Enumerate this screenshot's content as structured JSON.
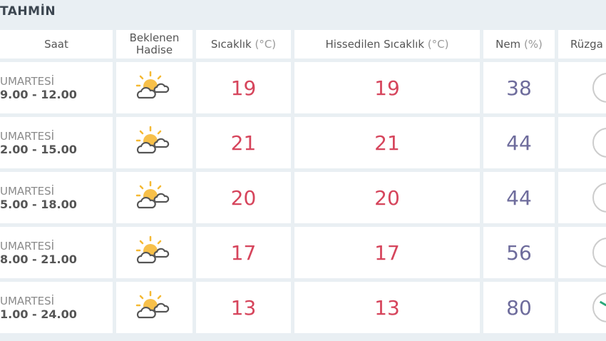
{
  "title": "TAHMİN",
  "headers": {
    "saat": "Saat",
    "hadise": "Beklenen Hadise",
    "sicaklik": "Sıcaklık",
    "sicaklik_unit": "(°C)",
    "hissedilen": "Hissedilen Sıcaklık",
    "hissedilen_unit": "(°C)",
    "nem": "Nem",
    "nem_unit": "(%)",
    "ruzgar": "Rüzga"
  },
  "colors": {
    "temperature": "#d6455c",
    "humidity": "#6e6c9c",
    "wind_arrow": "#2aa87a"
  },
  "rows": [
    {
      "day": "UMARTESİ",
      "time": "9.00 - 12.00",
      "icon": "partly-cloudy-icon",
      "temp": "19",
      "feels": "19",
      "humidity": "38"
    },
    {
      "day": "UMARTESİ",
      "time": "2.00 - 15.00",
      "icon": "partly-cloudy-icon",
      "temp": "21",
      "feels": "21",
      "humidity": "44"
    },
    {
      "day": "UMARTESİ",
      "time": "5.00 - 18.00",
      "icon": "partly-cloudy-icon",
      "temp": "20",
      "feels": "20",
      "humidity": "44"
    },
    {
      "day": "UMARTESİ",
      "time": "8.00 - 21.00",
      "icon": "partly-cloudy-icon",
      "temp": "17",
      "feels": "17",
      "humidity": "56"
    },
    {
      "day": "UMARTESİ",
      "time": "1.00 - 24.00",
      "icon": "partly-cloudy-icon",
      "temp": "13",
      "feels": "13",
      "humidity": "80"
    }
  ]
}
